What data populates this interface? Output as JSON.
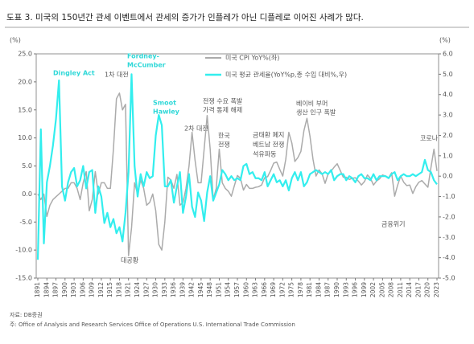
{
  "chart_data": {
    "type": "line",
    "title": "도표 3. 미국의 150년간 관세 이벤트에서 관세의 증가가 인플레가 아닌 디플레로 이어진 사례가 많다.",
    "y_unit": "(%)",
    "y2_unit": "(%)",
    "x": [
      1891,
      1892,
      1893,
      1894,
      1895,
      1896,
      1897,
      1898,
      1899,
      1900,
      1901,
      1902,
      1903,
      1904,
      1905,
      1906,
      1907,
      1908,
      1909,
      1910,
      1911,
      1912,
      1913,
      1914,
      1915,
      1916,
      1917,
      1918,
      1919,
      1920,
      1921,
      1922,
      1923,
      1924,
      1925,
      1926,
      1927,
      1928,
      1929,
      1930,
      1931,
      1932,
      1933,
      1934,
      1935,
      1936,
      1937,
      1938,
      1939,
      1940,
      1941,
      1942,
      1943,
      1944,
      1945,
      1946,
      1947,
      1948,
      1949,
      1950,
      1951,
      1952,
      1953,
      1954,
      1955,
      1956,
      1957,
      1958,
      1959,
      1960,
      1961,
      1962,
      1963,
      1964,
      1965,
      1966,
      1967,
      1968,
      1969,
      1970,
      1971,
      1972,
      1973,
      1974,
      1975,
      1976,
      1977,
      1978,
      1979,
      1980,
      1981,
      1982,
      1983,
      1984,
      1985,
      1986,
      1987,
      1988,
      1989,
      1990,
      1991,
      1992,
      1993,
      1994,
      1995,
      1996,
      1997,
      1998,
      1999,
      2000,
      2001,
      2002,
      2003,
      2004,
      2005,
      2006,
      2007,
      2008,
      2009,
      2010,
      2011,
      2012,
      2013,
      2014,
      2015,
      2016,
      2017,
      2018,
      2019,
      2020,
      2021,
      2022,
      2023
    ],
    "xlim": [
      1891,
      2023
    ],
    "xticks": [
      1891,
      1894,
      1897,
      1900,
      1903,
      1906,
      1909,
      1912,
      1915,
      1918,
      1921,
      1924,
      1927,
      1930,
      1933,
      1936,
      1939,
      1942,
      1945,
      1948,
      1951,
      1954,
      1957,
      1960,
      1963,
      1966,
      1969,
      1972,
      1975,
      1978,
      1981,
      1984,
      1987,
      1990,
      1993,
      1996,
      1999,
      2002,
      2005,
      2008,
      2011,
      2014,
      2017,
      2020,
      2023
    ],
    "ylim": [
      -15,
      25
    ],
    "yticks": [
      {
        "value": -15,
        "label": "-15.0"
      },
      {
        "value": -10,
        "label": "-10.0"
      },
      {
        "value": -5,
        "label": "-5.0"
      },
      {
        "value": 0,
        "label": "0.0"
      },
      {
        "value": 5,
        "label": "5.0"
      },
      {
        "value": 10,
        "label": "10.0"
      },
      {
        "value": 15,
        "label": "15.0"
      },
      {
        "value": 20,
        "label": "20.0"
      },
      {
        "value": 25,
        "label": "25.0"
      }
    ],
    "y2lim": [
      -5,
      6
    ],
    "y2ticks": [
      {
        "value": -5,
        "label": "-5.0"
      },
      {
        "value": -4,
        "label": "-4.0"
      },
      {
        "value": -3,
        "label": "-3.0"
      },
      {
        "value": -2,
        "label": "-2.0"
      },
      {
        "value": -1,
        "label": "-1.0"
      },
      {
        "value": 0,
        "label": "0.0"
      },
      {
        "value": 1,
        "label": "1.0"
      },
      {
        "value": 2,
        "label": "2.0"
      },
      {
        "value": 3,
        "label": "3.0"
      },
      {
        "value": 4,
        "label": "4.0"
      },
      {
        "value": 5,
        "label": "5.0"
      },
      {
        "value": 6,
        "label": "6.0"
      }
    ],
    "grid": false,
    "series": [
      {
        "name": "미국 CPI YoY%(좌)",
        "color": "#ababab",
        "width": 1.5,
        "values": [
          0,
          -1,
          0,
          -4,
          -2,
          -1,
          -0.5,
          0,
          0.5,
          1,
          1,
          2,
          2,
          1,
          -1,
          2,
          4,
          -3,
          -1,
          4,
          0,
          2,
          2,
          1,
          1,
          8,
          17,
          18,
          15,
          16,
          -11,
          -6,
          2,
          0,
          2.5,
          1,
          -2,
          -1.5,
          0,
          -3,
          -9,
          -10,
          -5,
          3,
          2.5,
          1,
          3.5,
          -2,
          -1.5,
          1,
          5,
          11,
          6,
          2,
          2,
          8,
          14,
          8,
          -1,
          1,
          8,
          2,
          1,
          0.5,
          -0.4,
          1.5,
          3.3,
          2.8,
          0.7,
          1.7,
          1,
          1,
          1.2,
          1.3,
          1.6,
          2.9,
          3.1,
          4.2,
          5.5,
          5.7,
          4.4,
          3.2,
          6.2,
          11,
          9.1,
          5.8,
          6.5,
          7.6,
          11.3,
          13.5,
          10.3,
          6.2,
          3.2,
          4.3,
          3.6,
          1.9,
          3.6,
          4.1,
          4.8,
          5.4,
          4.2,
          3,
          3,
          2.6,
          2.8,
          2.9,
          2.3,
          1.6,
          2.2,
          3.4,
          2.8,
          1.6,
          2.3,
          2.7,
          3.4,
          3.2,
          2.9,
          3.8,
          -0.4,
          1.6,
          3.2,
          2.1,
          1.5,
          1.6,
          0.1,
          1.3,
          2.1,
          2.4,
          1.8,
          1.2,
          4.7,
          8,
          4.1
        ]
      },
      {
        "name": "미국 평균 관세율(YoY%p,총 수입 대비%,우)",
        "color": "#33eeee",
        "width": 2.2,
        "axis": "y2",
        "values": [
          -4.1,
          2.3,
          -3.3,
          -0.3,
          0.5,
          1.5,
          2.8,
          4.7,
          -0.5,
          -1.2,
          -0.3,
          0.2,
          0.4,
          -0.5,
          -0.2,
          0.5,
          -0.6,
          0.2,
          0.3,
          -1.8,
          -0.5,
          -1,
          -2.3,
          -1.8,
          -2.5,
          -2.1,
          -2.8,
          -2.5,
          -3.2,
          -1.8,
          0.2,
          5,
          0.5,
          -1,
          0.1,
          -0.5,
          0.2,
          -0.1,
          0,
          2,
          3,
          2.5,
          -0.5,
          -0.5,
          -0.2,
          -1.3,
          -0.5,
          0.2,
          -1.8,
          -1,
          0.1,
          -1.5,
          -2,
          -0.8,
          -1.2,
          -2.2,
          -0.8,
          0,
          -1.2,
          -0.8,
          -0.4,
          0.3,
          0.1,
          -0.2,
          0,
          -0.2,
          -0.1,
          -0.2,
          0.5,
          0.6,
          0.1,
          0.2,
          -0.1,
          -0.1,
          -0.2,
          0.2,
          -0.5,
          -0.2,
          0.1,
          -0.3,
          -0.2,
          -0.5,
          -0.2,
          -0.7,
          -0.1,
          0.2,
          -0.2,
          0.2,
          -0.5,
          -0.3,
          0.1,
          0.2,
          0.3,
          0.2,
          0.1,
          0.2,
          0.1,
          0.3,
          -0.2,
          0,
          0.1,
          0.1,
          -0.2,
          0,
          -0.1,
          -0.3,
          0,
          0.1,
          -0.1,
          -0.1,
          -0.2,
          0.1,
          -0.2,
          0,
          0,
          0,
          -0.1,
          0.1,
          0.2,
          -0.2,
          0,
          0.1,
          0,
          0,
          0.1,
          0,
          0.1,
          0.2,
          0.8,
          0.3,
          0.2,
          -0.2,
          -0.4
        ]
      }
    ],
    "annotations": {
      "dingley": [
        "Dingley Act"
      ],
      "fordney": [
        "Fordney-",
        "McCumber"
      ],
      "smoot": [
        "Smoot",
        "Hawley"
      ],
      "ww1": [
        "1차 대전"
      ],
      "depression": [
        "대공황"
      ],
      "ww2": [
        "2차 대전"
      ],
      "postwar": [
        "전쟁 수요 폭발",
        "가격 통제 해제"
      ],
      "korea": [
        "한국",
        "전쟁"
      ],
      "vietnam": [
        "금태환 폐지",
        "베트남 전쟁",
        "석유파동"
      ],
      "boomer": [
        "베이비 부머",
        "생산 인구 폭발"
      ],
      "gfc": [
        "금융위기"
      ],
      "covid": [
        "코로나"
      ]
    },
    "source": "자료: DB증권",
    "note": "주: Office of Analysis and Research Services Office of Operations U.S. International Trade Commission"
  }
}
